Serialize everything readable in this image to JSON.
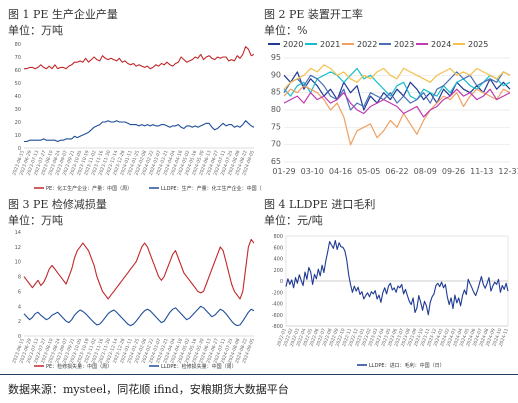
{
  "footer": {
    "source": "数据来源：mysteel，同花顺 ifind，安粮期货大数据平台"
  },
  "chart_data": [
    {
      "id": "c1",
      "type": "line",
      "title": "图 1 PE 生产企业产量",
      "unit": "单位：万吨",
      "ylim": [
        0,
        80
      ],
      "yticks": [
        "0",
        "10",
        "20",
        "30",
        "40",
        "50",
        "60",
        "70",
        "80"
      ],
      "xticks": [
        "2023-06-15",
        "2023-06-29",
        "2023-07-13",
        "2023-07-27",
        "2023-08-10",
        "2023-08-24",
        "2023-09-07",
        "2023-09-21",
        "2023-10-05",
        "2023-10-19",
        "2023-11-02",
        "2023-11-16",
        "2023-11-30",
        "2023-12-14",
        "2023-12-28",
        "2024-01-11",
        "2024-01-25",
        "2024-02-08",
        "2024-02-22",
        "2024-03-07",
        "2024-03-21",
        "2024-04-04",
        "2024-04-18",
        "2024-05-02",
        "2024-05-16",
        "2024-05-30",
        "2024-06-13",
        "2024-06-27",
        "2024-07-11",
        "2024-07-25",
        "2024-08-08",
        "2024-08-22",
        "2024-09-05"
      ],
      "grid": false,
      "legend_position": "bottom",
      "series": [
        {
          "name": "PE：化工生产企业：产量：中国（周）",
          "color": "#c0282a",
          "values": [
            61,
            61,
            62,
            62,
            61,
            62,
            64,
            62,
            61,
            63,
            61,
            64,
            61,
            62,
            62,
            61,
            63,
            64,
            66,
            66,
            67,
            66,
            69,
            66,
            68,
            70,
            68,
            67,
            71,
            69,
            68,
            69,
            68,
            67,
            69,
            66,
            67,
            65,
            64,
            65,
            63,
            64,
            63,
            62,
            63,
            61,
            62,
            64,
            63,
            65,
            64,
            66,
            64,
            63,
            65,
            66,
            70,
            68,
            66,
            67,
            68,
            70,
            69,
            72,
            68,
            70,
            71,
            69,
            68,
            70,
            69,
            70,
            70,
            67,
            68,
            67,
            71,
            69,
            72,
            78,
            76,
            71,
            72
          ]
        },
        {
          "name": "LLDPE：生产：产量：化工生产企业：中国（周）",
          "color": "#1f4e99",
          "values": [
            5,
            5,
            6,
            6,
            6,
            6,
            6,
            7,
            6,
            6,
            6,
            6,
            5,
            6,
            6,
            7,
            7,
            7,
            9,
            8,
            9,
            10,
            11,
            12,
            14,
            16,
            17,
            18,
            20,
            20,
            21,
            20,
            20,
            21,
            20,
            20,
            20,
            19,
            18,
            18,
            18,
            17,
            18,
            17,
            18,
            17,
            18,
            17,
            17,
            18,
            18,
            17,
            16,
            17,
            17,
            18,
            16,
            15,
            17,
            17,
            16,
            17,
            16,
            17,
            18,
            19,
            19,
            16,
            14,
            15,
            17,
            19,
            17,
            18,
            18,
            16,
            17,
            16,
            18,
            21,
            19,
            17,
            16
          ]
        }
      ]
    },
    {
      "id": "c2",
      "type": "line",
      "title": "图 2 PE 装置开工率",
      "unit": "单位：%",
      "ylim": [
        65,
        95
      ],
      "yticks": [
        "65",
        "70",
        "75",
        "80",
        "85",
        "90",
        "95"
      ],
      "xticks": [
        "01-29",
        "03-10",
        "04-16",
        "05-05",
        "06-22",
        "08-09",
        "09-26",
        "11-13",
        "12-31"
      ],
      "grid": true,
      "legend_position": "top",
      "series": [
        {
          "name": "2020",
          "color": "#1f3a93",
          "values": [
            90,
            88,
            91,
            86,
            89,
            87,
            84,
            86,
            83,
            88,
            85,
            87,
            80,
            84,
            82,
            85,
            83,
            86,
            84,
            88,
            86,
            83,
            85,
            82,
            86,
            84,
            88,
            86,
            85,
            87,
            85,
            89,
            86,
            88,
            86
          ]
        },
        {
          "name": "2021",
          "color": "#17becf",
          "values": [
            86,
            84,
            87,
            88,
            85,
            89,
            90,
            91,
            90,
            88,
            90,
            92,
            89,
            90,
            88,
            86,
            84,
            87,
            88,
            84,
            83,
            86,
            85,
            84,
            87,
            85,
            88,
            89,
            87,
            86,
            88,
            90,
            89,
            87,
            88
          ]
        },
        {
          "name": "2022",
          "color": "#f0a060",
          "values": [
            84,
            86,
            85,
            87,
            86,
            85,
            83,
            80,
            82,
            78,
            70,
            74,
            75,
            76,
            72,
            74,
            77,
            75,
            79,
            76,
            73,
            77,
            80,
            82,
            84,
            83,
            85,
            81,
            84,
            86,
            85,
            84,
            83,
            86,
            85
          ]
        },
        {
          "name": "2023",
          "color": "#4a70b8",
          "values": [
            85,
            88,
            89,
            87,
            90,
            89,
            87,
            84,
            83,
            86,
            80,
            82,
            81,
            85,
            84,
            83,
            85,
            82,
            84,
            82,
            83,
            85,
            82,
            86,
            87,
            89,
            91,
            89,
            90,
            87,
            88,
            89,
            88,
            91,
            90
          ]
        },
        {
          "name": "2024",
          "color": "#c03ab0",
          "values": [
            82,
            83,
            84,
            82,
            85,
            83,
            84,
            82,
            83,
            85,
            82,
            80,
            79,
            81,
            82,
            83,
            82,
            81,
            79,
            80,
            81,
            78,
            80,
            81,
            83,
            84,
            86,
            84,
            85,
            83,
            84,
            86,
            83,
            84,
            85
          ]
        },
        {
          "name": "2025",
          "color": "#f2c14e",
          "values": [
            86,
            88,
            89,
            90,
            92,
            91,
            93,
            92,
            90,
            91,
            89,
            88,
            90,
            89,
            91,
            92,
            90,
            89,
            92,
            91,
            90,
            89,
            88,
            90,
            91,
            92,
            90,
            91,
            90,
            92,
            91,
            90,
            89,
            91,
            90
          ]
        }
      ]
    },
    {
      "id": "c3",
      "type": "line",
      "title": "图 3 PE 检修减损量",
      "unit": "单位：万吨",
      "ylim": [
        0,
        14
      ],
      "yticks": [
        "0",
        "2",
        "4",
        "6",
        "8",
        "10",
        "12",
        "14"
      ],
      "xticks": [
        "2023-06-15",
        "2023-06-29",
        "2023-07-13",
        "2023-07-27",
        "2023-08-10",
        "2023-08-24",
        "2023-09-07",
        "2023-09-21",
        "2023-10-05",
        "2023-10-19",
        "2023-11-02",
        "2023-11-16",
        "2023-11-30",
        "2023-12-14",
        "2023-12-28",
        "2024-01-11",
        "2024-01-25",
        "2024-02-08",
        "2024-02-22",
        "2024-03-07",
        "2024-03-21",
        "2024-04-04",
        "2024-04-18",
        "2024-05-02",
        "2024-05-16",
        "2024-05-30",
        "2024-06-13",
        "2024-06-27",
        "2024-07-11",
        "2024-07-25",
        "2024-08-08",
        "2024-08-22",
        "2024-09-05"
      ],
      "grid": false,
      "legend_position": "bottom",
      "series": [
        {
          "name": "PE：检修损失量：中国（周）",
          "color": "#c0282a",
          "values": [
            8,
            7.5,
            7,
            6.5,
            7,
            7.5,
            6.8,
            7.2,
            8,
            9,
            9.5,
            9,
            8.5,
            8,
            7.5,
            7,
            8,
            9,
            10.5,
            11.5,
            12,
            12.5,
            12,
            11.5,
            10.5,
            9.5,
            8,
            7,
            6,
            5.5,
            5,
            5.5,
            6,
            6.5,
            7,
            7.5,
            8,
            8.5,
            9,
            9.5,
            10,
            11,
            12,
            12.5,
            12,
            11,
            10,
            9,
            8,
            7.5,
            8,
            9,
            10,
            11,
            11.5,
            10.5,
            9.5,
            8.5,
            8,
            7.5,
            7,
            6.5,
            6,
            5.8,
            6,
            7,
            8,
            9,
            10,
            11,
            12,
            11.5,
            10,
            8.5,
            7,
            6,
            5.5,
            5,
            6,
            9,
            12,
            13,
            12.5
          ]
        },
        {
          "name": "LLDPE：检修损失量：中国（周）",
          "color": "#1f4e99",
          "values": [
            3,
            2.6,
            2.2,
            2.5,
            3,
            3.2,
            2.8,
            2.5,
            2.2,
            2.4,
            2.8,
            3,
            3.2,
            2.8,
            2.4,
            2,
            1.8,
            2.2,
            2.8,
            3.2,
            3.5,
            3.3,
            3,
            2.6,
            2.2,
            1.8,
            1.5,
            1.6,
            2,
            2.5,
            3,
            3.3,
            3.5,
            3.2,
            2.8,
            2.4,
            2,
            1.6,
            1.4,
            1.6,
            2,
            2.5,
            3,
            3.4,
            3.6,
            3.4,
            3,
            2.6,
            2.2,
            1.8,
            2,
            2.6,
            3.2,
            3.6,
            3.8,
            3.4,
            3,
            2.6,
            2.2,
            2.4,
            2.8,
            3.2,
            3.6,
            4,
            3.8,
            3.4,
            3,
            2.6,
            2.8,
            3.2,
            3.6,
            3.4,
            3,
            2.5,
            2,
            1.6,
            1.4,
            1.5,
            2,
            2.6,
            3.2,
            3.6,
            3.4
          ]
        }
      ]
    },
    {
      "id": "c4",
      "type": "line",
      "title": "图 4 LLDPE 进口毛利",
      "unit": "单位：元/吨",
      "ylim": [
        -800,
        800
      ],
      "yticks": [
        "-800",
        "-600",
        "-400",
        "-200",
        "0",
        "200",
        "400",
        "600",
        "800"
      ],
      "xticks": [
        "2022-01",
        "2022-02",
        "2022-03",
        "2022-04",
        "2022-05",
        "2022-06",
        "2022-07",
        "2022-08",
        "2022-09",
        "2022-10",
        "2022-11",
        "2022-12",
        "2023-01",
        "2023-02",
        "2023-03",
        "2023-04",
        "2023-05",
        "2023-06",
        "2023-07",
        "2023-08",
        "2023-09",
        "2023-10",
        "2023-11",
        "2023-12",
        "2024-01",
        "2024-02",
        "2024-03",
        "2024-04",
        "2024-05",
        "2024-06",
        "2024-07",
        "2024-08",
        "2024-09",
        "2024-10",
        "2024-11"
      ],
      "grid": false,
      "legend_position": "bottom",
      "series": [
        {
          "name": "LLDPE：进口：毛利：中国（日）",
          "color": "#1f3a93",
          "values": [
            -100,
            40,
            -60,
            20,
            -120,
            60,
            -40,
            110,
            10,
            -80,
            160,
            30,
            240,
            160,
            -60,
            120,
            40,
            210,
            90,
            280,
            150,
            360,
            520,
            700,
            640,
            580,
            720,
            560,
            680,
            610,
            600,
            540,
            380,
            120,
            -60,
            -200,
            -90,
            -180,
            -110,
            -240,
            -190,
            -320,
            -260,
            -210,
            -280,
            -190,
            -230,
            -170,
            -320,
            -250,
            -380,
            -210,
            -120,
            -230,
            -90,
            -40,
            -160,
            -120,
            -200,
            -90,
            -120,
            -60,
            -230,
            -150,
            -260,
            -360,
            -420,
            -300,
            -560,
            -480,
            -260,
            -380,
            -520,
            -360,
            -440,
            -600,
            -380,
            -280,
            -230,
            -80,
            -40,
            -100,
            -20,
            -120,
            -60,
            -280,
            -420,
            -300,
            -490,
            -250,
            -390,
            -300,
            -440,
            -260,
            -160,
            -240,
            30,
            -50,
            -120,
            -200,
            -260,
            -160,
            -40,
            80,
            -60,
            -130,
            -40,
            60,
            -180,
            -90,
            -20,
            -60,
            30,
            -200,
            -80,
            -150,
            -40,
            -180
          ]
        }
      ]
    }
  ]
}
